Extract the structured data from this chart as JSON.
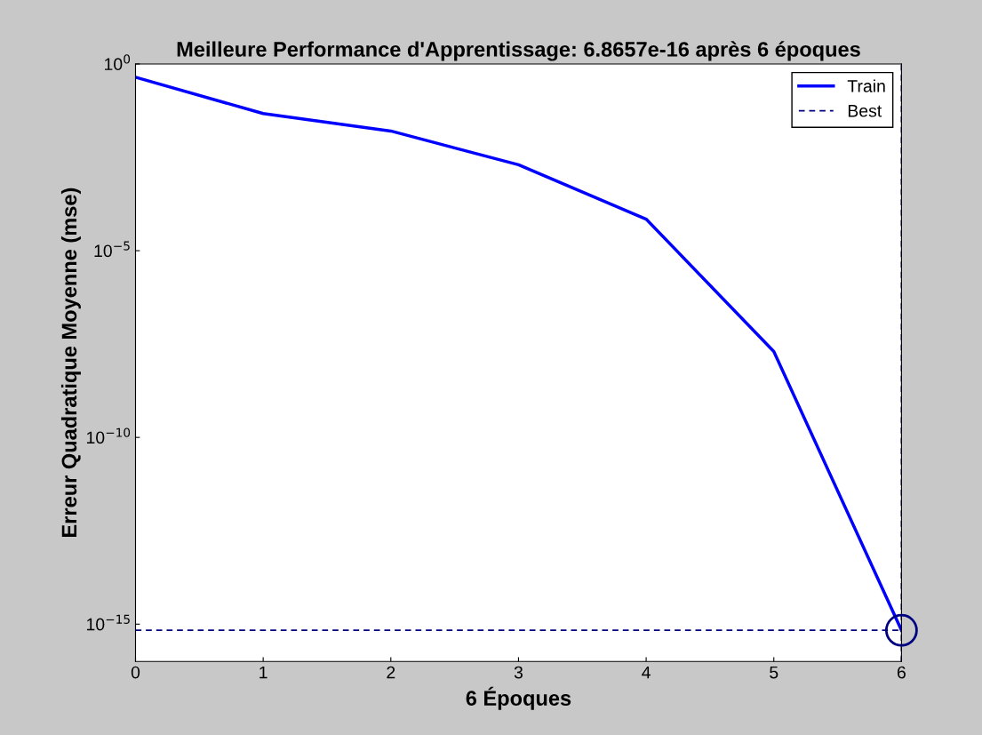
{
  "chart_data": {
    "type": "line",
    "title": "Meilleure Performance d'Apprentissage: 6.8657e-16 après 6 époques",
    "xlabel": "6 Époques",
    "ylabel": "Erreur Quadratique Moyenne (mse)",
    "x": [
      0,
      1,
      2,
      3,
      4,
      5,
      6
    ],
    "series": [
      {
        "name": "Train",
        "color": "#0000ff",
        "values": [
          0.44,
          0.047,
          0.016,
          0.002,
          7e-05,
          2e-08,
          6.8657e-16
        ]
      },
      {
        "type": "scatter",
        "color": "#000080",
        "x": [
          6
        ],
        "values": [
          6.8657e-16
        ],
        "marker": "circle"
      }
    ],
    "ref_lines": [
      {
        "axis": "y",
        "value": 6.8657e-16,
        "label": "Best",
        "color": "#000080",
        "line_style": "dashed"
      },
      {
        "axis": "x",
        "value": 6,
        "color": "#000080",
        "line_style": "dashed"
      }
    ],
    "log": "y",
    "xlim": [
      0,
      6
    ],
    "ylim": [
      1e-16,
      1
    ],
    "xticks": [
      0,
      1,
      2,
      3,
      4,
      5,
      6
    ],
    "yticks": [
      {
        "value": 1,
        "label": "10$^{0}$"
      },
      {
        "value": 1e-05,
        "label": "10$^{−5}$"
      },
      {
        "value": 1e-10,
        "label": "10$^{−10}$"
      },
      {
        "value": 1e-15,
        "label": "10$^{−15}$"
      }
    ],
    "grid": false,
    "legend": "top right"
  }
}
